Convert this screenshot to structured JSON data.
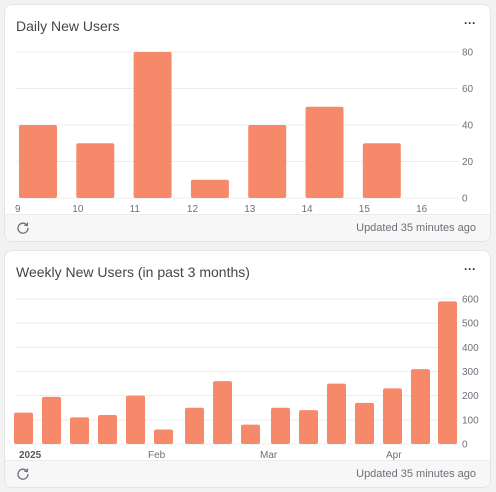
{
  "colors": {
    "bar": "#f7896b",
    "grid": "#ececee",
    "axis_text": "#6d7079"
  },
  "card1": {
    "title": "Daily New Users",
    "menu_label": "···",
    "updated_text": "Updated 35 minutes ago",
    "refresh_icon": "refresh-icon"
  },
  "card2": {
    "title": "Weekly New Users (in past 3 months)",
    "menu_label": "···",
    "updated_text": "Updated 35 minutes ago",
    "refresh_icon": "refresh-icon"
  },
  "chart_data": [
    {
      "type": "bar",
      "title": "Daily New Users",
      "x": [
        9,
        10,
        11,
        12,
        13,
        14,
        15
      ],
      "values": [
        40,
        30,
        80,
        10,
        40,
        50,
        30
      ],
      "x_tick_labels": [
        "9",
        "10",
        "11",
        "12",
        "13",
        "14",
        "15",
        "16"
      ],
      "y_ticks": [
        0,
        20,
        40,
        60,
        80
      ],
      "ylim": [
        0,
        80
      ],
      "y_axis_side": "right",
      "grid": true
    },
    {
      "type": "bar",
      "title": "Weekly New Users (in past 3 months)",
      "values": [
        130,
        195,
        110,
        120,
        200,
        60,
        150,
        260,
        80,
        150,
        140,
        250,
        170,
        230,
        310,
        590
      ],
      "x_tick_labels": [
        {
          "label": "2025",
          "bold": true
        },
        {
          "label": "Feb",
          "bold": false
        },
        {
          "label": "Mar",
          "bold": false
        },
        {
          "label": "Apr",
          "bold": false
        }
      ],
      "y_ticks": [
        0,
        100,
        200,
        300,
        400,
        500,
        600
      ],
      "ylim": [
        0,
        600
      ],
      "y_axis_side": "right",
      "grid": true
    }
  ]
}
